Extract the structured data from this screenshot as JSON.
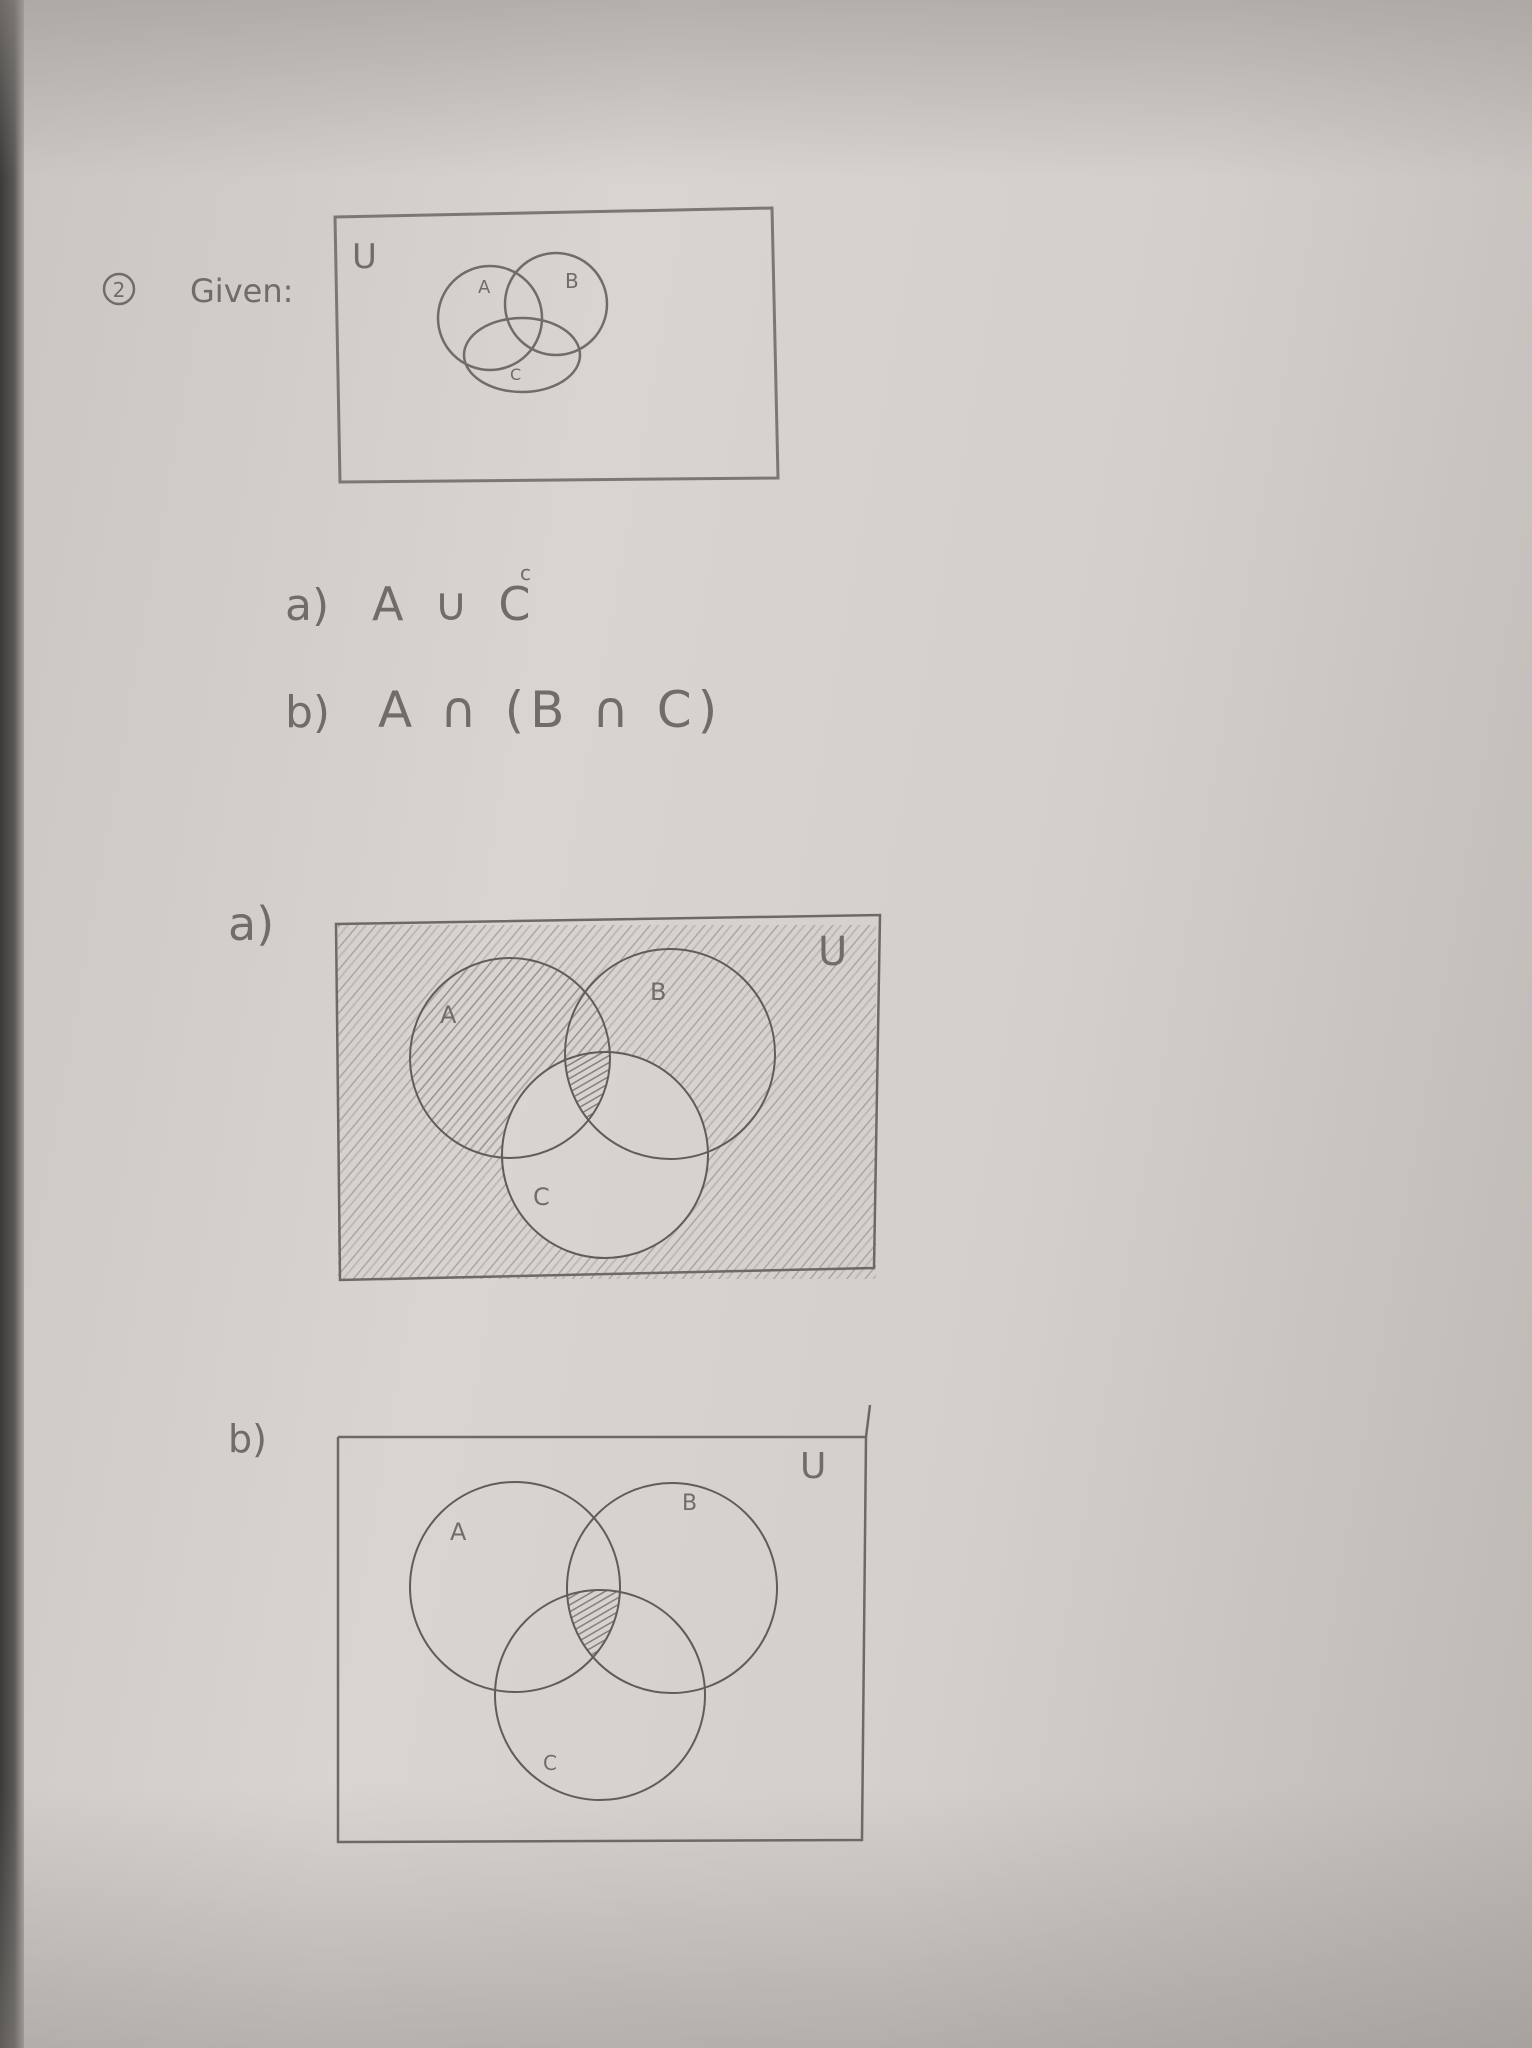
{
  "problem": {
    "number": "2",
    "given_label": "Given:",
    "universe_label": "U",
    "set_labels": {
      "a": "A",
      "b": "B",
      "c": "C"
    }
  },
  "questions": [
    {
      "label": "a)",
      "expression": "A ∪ C",
      "superscript": "c"
    },
    {
      "label": "b)",
      "expression": "A ∩ (B ∩ C)"
    }
  ],
  "answers": [
    {
      "label": "a)",
      "universe_label": "U",
      "set_labels": {
        "a": "A",
        "b": "B",
        "c": "C"
      },
      "shaded_regions": [
        "outside-C",
        "A∩B∩C"
      ]
    },
    {
      "label": "b)",
      "universe_label": "U",
      "set_labels": {
        "a": "A",
        "b": "B",
        "c": "C"
      },
      "shaded_regions": [
        "A∩B∩C"
      ]
    }
  ],
  "colors": {
    "pencil": "#6f6c69",
    "shading": "#8a8783",
    "paper": "#d6d2cf"
  }
}
